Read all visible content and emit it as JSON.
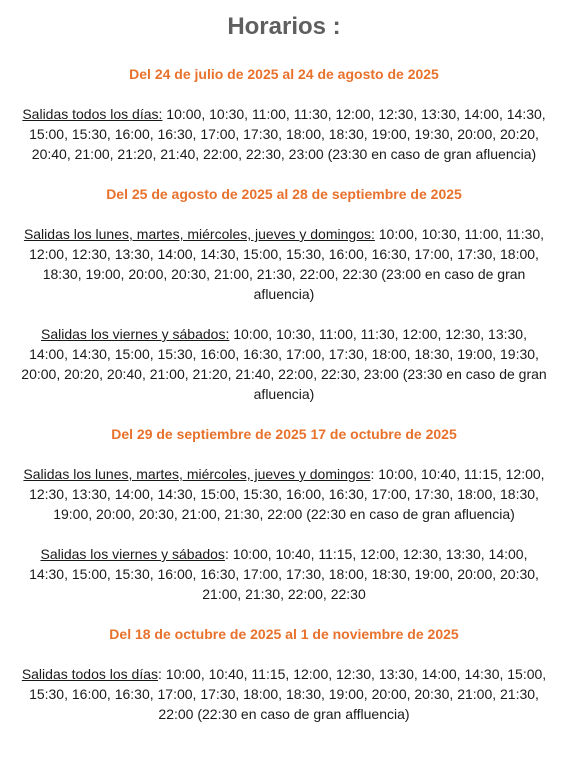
{
  "title": "Horarios :",
  "sections": [
    {
      "period": "Del 24 de julio de 2025 al 24 de agosto de 2025",
      "schedules": [
        {
          "label": "Salidas todos los días:",
          "times": " 10:00, 10:30, 11:00, 11:30, 12:00, 12:30, 13:30, 14:00, 14:30, 15:00, 15:30, 16:00, 16:30, 17:00, 17:30, 18:00, 18:30, 19:00, 19:30, 20:00, 20:20, 20:40, 21:00, 21:20, 21:40, 22:00, 22:30, 23:00 (23:30 en caso de gran afluencia)"
        }
      ]
    },
    {
      "period": "Del 25 de agosto de 2025 al 28 de septiembre de 2025",
      "schedules": [
        {
          "label": "Salidas los lunes, martes, miércoles, jueves y domingos:",
          "times": " 10:00, 10:30, 11:00, 11:30, 12:00, 12:30, 13:30, 14:00, 14:30, 15:00, 15:30, 16:00, 16:30, 17:00, 17:30, 18:00, 18:30, 19:00, 20:00, 20:30, 21:00, 21:30, 22:00, 22:30 (23:00 en caso de gran afluencia)"
        },
        {
          "label": "Salidas los viernes y sábados:",
          "times": " 10:00, 10:30, 11:00, 11:30, 12:00, 12:30, 13:30, 14:00, 14:30, 15:00, 15:30, 16:00, 16:30, 17:00, 17:30, 18:00, 18:30, 19:00, 19:30, 20:00, 20:20, 20:40, 21:00, 21:20, 21:40, 22:00, 22:30, 23:00 (23:30 en caso de gran afluencia)"
        }
      ]
    },
    {
      "period": "Del 29 de septiembre de 2025 17 de octubre de 2025",
      "schedules": [
        {
          "label": "Salidas los lunes, martes, miércoles, jueves y domingos",
          "times": ": 10:00, 10:40, 11:15, 12:00, 12:30, 13:30, 14:00, 14:30, 15:00, 15:30, 16:00, 16:30, 17:00, 17:30, 18:00, 18:30, 19:00, 20:00, 20:30, 21:00, 21:30, 22:00 (22:30 en caso de gran afluencia)"
        },
        {
          "label": "Salidas los viernes y sábados",
          "times": ": 10:00, 10:40, 11:15, 12:00, 12:30, 13:30, 14:00, 14:30, 15:00, 15:30, 16:00, 16:30, 17:00, 17:30, 18:00, 18:30, 19:00, 20:00, 20:30, 21:00, 21:30, 22:00, 22:30"
        }
      ]
    },
    {
      "period": "Del 18 de octubre de 2025 al 1 de noviembre de 2025",
      "schedules": [
        {
          "label": "Salidas todos los días",
          "times": ": 10:00, 10:40, 11:15, 12:00, 12:30, 13:30, 14:00, 14:30, 15:00, 15:30, 16:00, 16:30, 17:00, 17:30, 18:00, 18:30, 19:00, 20:00, 20:30, 21:00, 21:30, 22:00 (22:30 en caso de gran affluencia)"
        }
      ]
    }
  ]
}
